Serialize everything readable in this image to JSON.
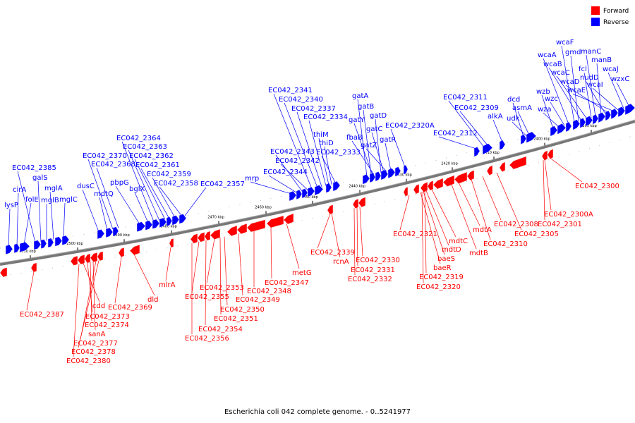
{
  "title": "Escherichia coli 042 complete genome. - 0..5241977",
  "legend": [
    {
      "label": "Forward",
      "color": "#ff0000"
    },
    {
      "label": "Reverse",
      "color": "#0000ff"
    }
  ],
  "colors": {
    "forward": "#ff0000",
    "reverse": "#0000ff",
    "backbone": "#777777"
  },
  "icons": [
    "forward-gene-arrow",
    "reverse-gene-arrow",
    "kbp-tick"
  ],
  "kbp_ticks": [
    "2510 kbp",
    "2500 kbp",
    "2490 kbp",
    "2480 kbp",
    "2470 kbp",
    "2460 kbp",
    "2450 kbp",
    "2440 kbp",
    "2430 kbp",
    "2420 kbp",
    "2410 kbp",
    "2400 kbp",
    "2390 kbp"
  ],
  "reverse_labels": [
    "lysP",
    "cirA",
    "folE",
    "EC042_2385",
    "galS",
    "mglB",
    "mglA",
    "mglC",
    "dusC",
    "mdtQ",
    "EC042_2370",
    "EC042_2368",
    "pbpG",
    "bglX",
    "EC042_2364",
    "EC042_2363",
    "EC042_2362",
    "EC042_2361",
    "EC042_2359",
    "EC042_2358",
    "EC042_2357",
    "mrp",
    "EC042_2344",
    "EC042_2343",
    "EC042_2342",
    "EC042_2341",
    "EC042_2340",
    "EC042_2337",
    "EC042_2334",
    "thiM",
    "thiD",
    "EC042_2333",
    "gatA",
    "gatB",
    "gatY",
    "gatD",
    "fbaB",
    "gatC",
    "gatZ",
    "gatR",
    "EC042_2320A",
    "EC042_2312",
    "EC042_2311",
    "EC042_2309",
    "alkA",
    "dcd",
    "asmA",
    "udk",
    "wzb",
    "wza",
    "wzc",
    "wcaA",
    "wcaF",
    "gmd",
    "wcaB",
    "wcaC",
    "fcl",
    "manC",
    "manB",
    "nudD",
    "wcaD",
    "wcaE",
    "wcaI",
    "wcaJ",
    "wzxC"
  ],
  "forward_labels": [
    "EC042_2387",
    "cdd",
    "EC042_2373",
    "EC042_2374",
    "sanA",
    "EC042_2377",
    "EC042_2378",
    "EC042_2380",
    "EC042_2369",
    "dld",
    "mlrA",
    "EC042_2353",
    "EC042_2355",
    "EC042_2349",
    "EC042_2348",
    "EC042_2350",
    "EC042_2351",
    "EC042_2354",
    "EC042_2356",
    "EC042_2347",
    "metG",
    "EC042_2339",
    "rcnA",
    "EC042_2330",
    "EC042_2331",
    "EC042_2332",
    "EC042_2321",
    "mdtC",
    "mdtD",
    "baeS",
    "baeR",
    "EC042_2319",
    "EC042_2320",
    "mdtA",
    "mdtB",
    "EC042_2310",
    "EC042_2308",
    "EC042_2305",
    "EC042_2300A",
    "EC042_2301",
    "EC042_2300"
  ]
}
